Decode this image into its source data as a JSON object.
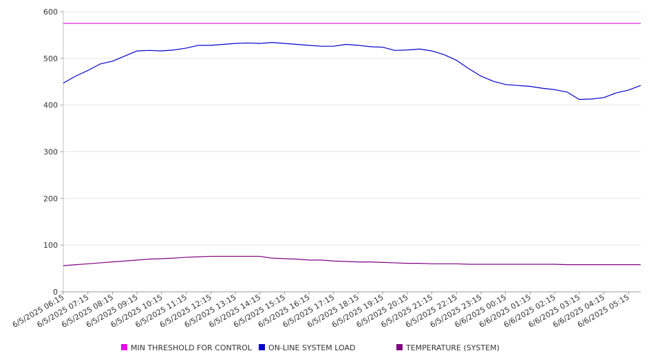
{
  "chart_data": {
    "type": "line",
    "title": "",
    "xlabel": "",
    "ylabel": "",
    "ylim": [
      0,
      600
    ],
    "yticks": [
      0,
      100,
      200,
      300,
      400,
      500,
      600
    ],
    "grid": true,
    "legend_position": "bottom",
    "x_tick_labels": [
      "6/5/2025 06:15",
      "6/5/2025 07:15",
      "6/5/2025 08:15",
      "6/5/2025 09:15",
      "6/5/2025 10:15",
      "6/5/2025 11:15",
      "6/5/2025 12:15",
      "6/5/2025 13:15",
      "6/5/2025 14:15",
      "6/5/2025 15:15",
      "6/5/2025 16:15",
      "6/5/2025 17:15",
      "6/5/2025 18:15",
      "6/5/2025 19:15",
      "6/5/2025 20:15",
      "6/5/2025 21:15",
      "6/5/2025 22:15",
      "6/5/2025 23:15",
      "6/6/2025 00:15",
      "6/6/2025 01:15",
      "6/6/2025 02:15",
      "6/6/2025 03:15",
      "6/6/2025 04:15",
      "6/6/2025 05:15"
    ],
    "x": [
      "6/5/2025 06:15",
      "6/5/2025 06:45",
      "6/5/2025 07:15",
      "6/5/2025 07:45",
      "6/5/2025 08:15",
      "6/5/2025 08:45",
      "6/5/2025 09:15",
      "6/5/2025 09:45",
      "6/5/2025 10:15",
      "6/5/2025 10:45",
      "6/5/2025 11:15",
      "6/5/2025 11:45",
      "6/5/2025 12:15",
      "6/5/2025 12:45",
      "6/5/2025 13:15",
      "6/5/2025 13:45",
      "6/5/2025 14:15",
      "6/5/2025 14:45",
      "6/5/2025 15:15",
      "6/5/2025 15:45",
      "6/5/2025 16:15",
      "6/5/2025 16:45",
      "6/5/2025 17:15",
      "6/5/2025 17:45",
      "6/5/2025 18:15",
      "6/5/2025 18:45",
      "6/5/2025 19:15",
      "6/5/2025 19:45",
      "6/5/2025 20:15",
      "6/5/2025 20:45",
      "6/5/2025 21:15",
      "6/5/2025 21:45",
      "6/5/2025 22:15",
      "6/5/2025 22:45",
      "6/5/2025 23:15",
      "6/5/2025 23:45",
      "6/6/2025 00:15",
      "6/6/2025 00:45",
      "6/6/2025 01:15",
      "6/6/2025 01:45",
      "6/6/2025 02:15",
      "6/6/2025 02:45",
      "6/6/2025 03:15",
      "6/6/2025 03:45",
      "6/6/2025 04:15",
      "6/6/2025 04:45",
      "6/6/2025 05:15",
      "6/6/2025 05:45"
    ],
    "series": [
      {
        "name": "MIN THRESHOLD FOR CONTROL",
        "color": "#e600e6",
        "values": [
          575,
          575,
          575,
          575,
          575,
          575,
          575,
          575,
          575,
          575,
          575,
          575,
          575,
          575,
          575,
          575,
          575,
          575,
          575,
          575,
          575,
          575,
          575,
          575,
          575,
          575,
          575,
          575,
          575,
          575,
          575,
          575,
          575,
          575,
          575,
          575,
          575,
          575,
          575,
          575,
          575,
          575,
          575,
          575,
          575,
          575,
          575,
          575
        ]
      },
      {
        "name": "ON-LINE SYSTEM LOAD",
        "color": "#0000cc",
        "values": [
          447,
          462,
          474,
          488,
          494,
          505,
          516,
          517,
          516,
          518,
          522,
          528,
          528,
          530,
          532,
          533,
          532,
          534,
          532,
          530,
          528,
          526,
          526,
          530,
          528,
          525,
          524,
          517,
          518,
          520,
          516,
          508,
          496,
          478,
          462,
          451,
          444,
          442,
          440,
          436,
          433,
          428,
          412,
          413,
          416,
          426,
          432,
          442
        ]
      },
      {
        "name": "TEMPERATURE (SYSTEM)",
        "color": "#800080",
        "values": [
          56,
          58,
          60,
          62,
          64,
          66,
          68,
          70,
          71,
          72,
          74,
          75,
          76,
          76,
          76,
          76,
          76,
          72,
          71,
          70,
          68,
          68,
          66,
          65,
          64,
          64,
          63,
          62,
          61,
          61,
          60,
          60,
          60,
          59,
          59,
          59,
          59,
          59,
          59,
          59,
          59,
          58,
          58,
          58,
          58,
          58,
          58,
          58
        ]
      }
    ]
  }
}
